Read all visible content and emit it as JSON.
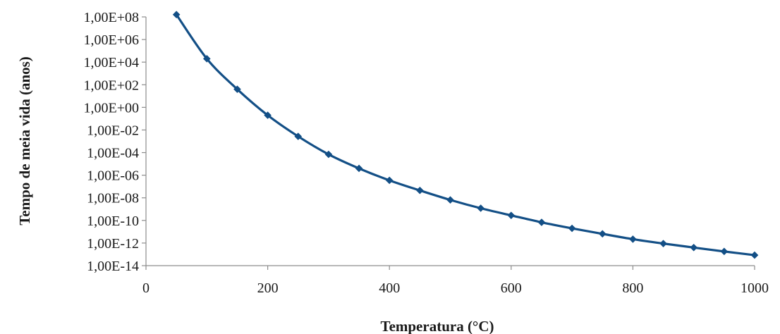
{
  "chart_data": {
    "type": "line",
    "title": "",
    "xlabel": "Temperatura (°C)",
    "ylabel": "Tempo de meia vida (anos)",
    "xlim": [
      0,
      1000
    ],
    "ylim": [
      1e-14,
      100000000.0
    ],
    "y_scale": "log",
    "grid": false,
    "legend": "none",
    "x_ticks": [
      0,
      200,
      400,
      600,
      800,
      1000
    ],
    "x_tick_labels": [
      "0",
      "200",
      "400",
      "600",
      "800",
      "1000"
    ],
    "y_ticks": [
      100000000.0,
      1000000.0,
      10000.0,
      100.0,
      1.0,
      0.01,
      0.0001,
      1e-06,
      1e-08,
      1e-10,
      1e-12,
      1e-14
    ],
    "y_tick_labels": [
      "1,00E+08",
      "1,00E+06",
      "1,00E+04",
      "1,00E+02",
      "1,00E+00",
      "1,00E-02",
      "1,00E-04",
      "1,00E-06",
      "1,00E-08",
      "1,00E-10",
      "1,00E-12",
      "1,00E-14"
    ],
    "series": [
      {
        "color": "#134f86",
        "marker": "diamond",
        "x": [
          50,
          100,
          150,
          200,
          250,
          300,
          350,
          400,
          450,
          500,
          550,
          600,
          650,
          700,
          750,
          800,
          850,
          900,
          950,
          1000
        ],
        "y": [
          160000000.0,
          20000.0,
          40.0,
          0.2,
          0.0027,
          7e-05,
          4e-06,
          3.5e-07,
          4.5e-08,
          6.5e-09,
          1.2e-09,
          2.8e-10,
          6.8e-11,
          2e-11,
          6.5e-12,
          2.2e-12,
          9e-13,
          4e-13,
          1.8e-13,
          8.5e-14
        ]
      }
    ]
  }
}
